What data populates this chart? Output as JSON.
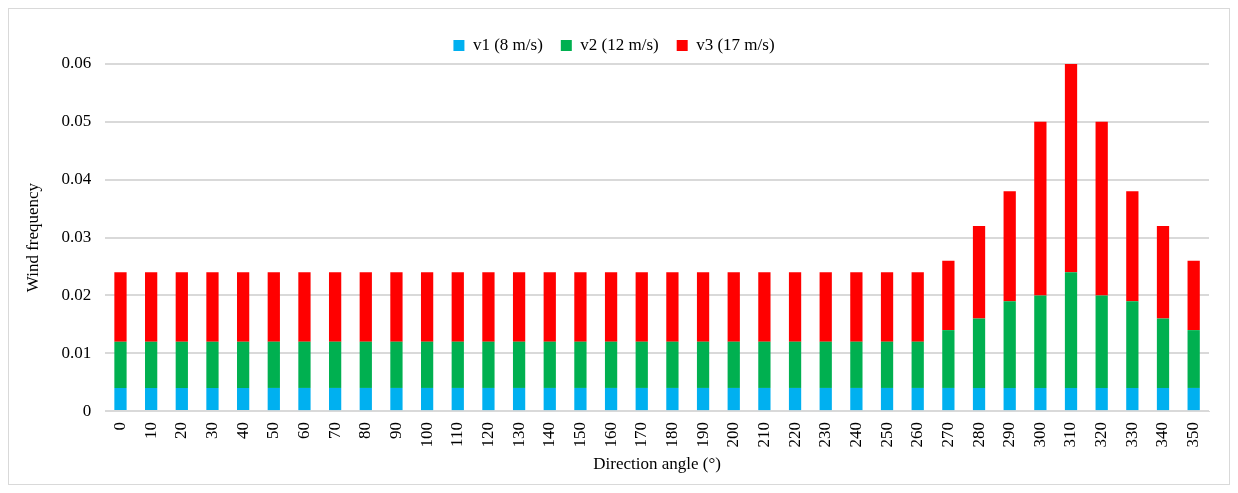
{
  "chart_data": {
    "type": "bar",
    "stacked": true,
    "xlabel": "Direction angle (°)",
    "ylabel": "Wind frequency",
    "categories": [
      "0",
      "10",
      "20",
      "30",
      "40",
      "50",
      "60",
      "70",
      "80",
      "90",
      "100",
      "110",
      "120",
      "130",
      "140",
      "150",
      "160",
      "170",
      "180",
      "190",
      "200",
      "210",
      "220",
      "230",
      "240",
      "250",
      "260",
      "270",
      "280",
      "290",
      "300",
      "310",
      "320",
      "330",
      "340",
      "350"
    ],
    "series": [
      {
        "name": "v1 (8 m/s)",
        "color": "#00b0f0",
        "values": [
          0.004,
          0.004,
          0.004,
          0.004,
          0.004,
          0.004,
          0.004,
          0.004,
          0.004,
          0.004,
          0.004,
          0.004,
          0.004,
          0.004,
          0.004,
          0.004,
          0.004,
          0.004,
          0.004,
          0.004,
          0.004,
          0.004,
          0.004,
          0.004,
          0.004,
          0.004,
          0.004,
          0.004,
          0.004,
          0.004,
          0.004,
          0.004,
          0.004,
          0.004,
          0.004,
          0.004
        ]
      },
      {
        "name": "v2 (12 m/s)",
        "color": "#00b050",
        "values": [
          0.008,
          0.008,
          0.008,
          0.008,
          0.008,
          0.008,
          0.008,
          0.008,
          0.008,
          0.008,
          0.008,
          0.008,
          0.008,
          0.008,
          0.008,
          0.008,
          0.008,
          0.008,
          0.008,
          0.008,
          0.008,
          0.008,
          0.008,
          0.008,
          0.008,
          0.008,
          0.008,
          0.01,
          0.012,
          0.015,
          0.016,
          0.02,
          0.016,
          0.015,
          0.012,
          0.01
        ]
      },
      {
        "name": "v3 (17 m/s)",
        "color": "#ff0000",
        "values": [
          0.012,
          0.012,
          0.012,
          0.012,
          0.012,
          0.012,
          0.012,
          0.012,
          0.012,
          0.012,
          0.012,
          0.012,
          0.012,
          0.012,
          0.012,
          0.012,
          0.012,
          0.012,
          0.012,
          0.012,
          0.012,
          0.012,
          0.012,
          0.012,
          0.012,
          0.012,
          0.012,
          0.012,
          0.016,
          0.019,
          0.03,
          0.036,
          0.03,
          0.019,
          0.016,
          0.012
        ]
      }
    ],
    "ylim": [
      0,
      0.06
    ],
    "yticks": [
      0,
      0.01,
      0.02,
      0.03,
      0.04,
      0.05,
      0.06
    ],
    "grid": "y",
    "legend": "top"
  }
}
